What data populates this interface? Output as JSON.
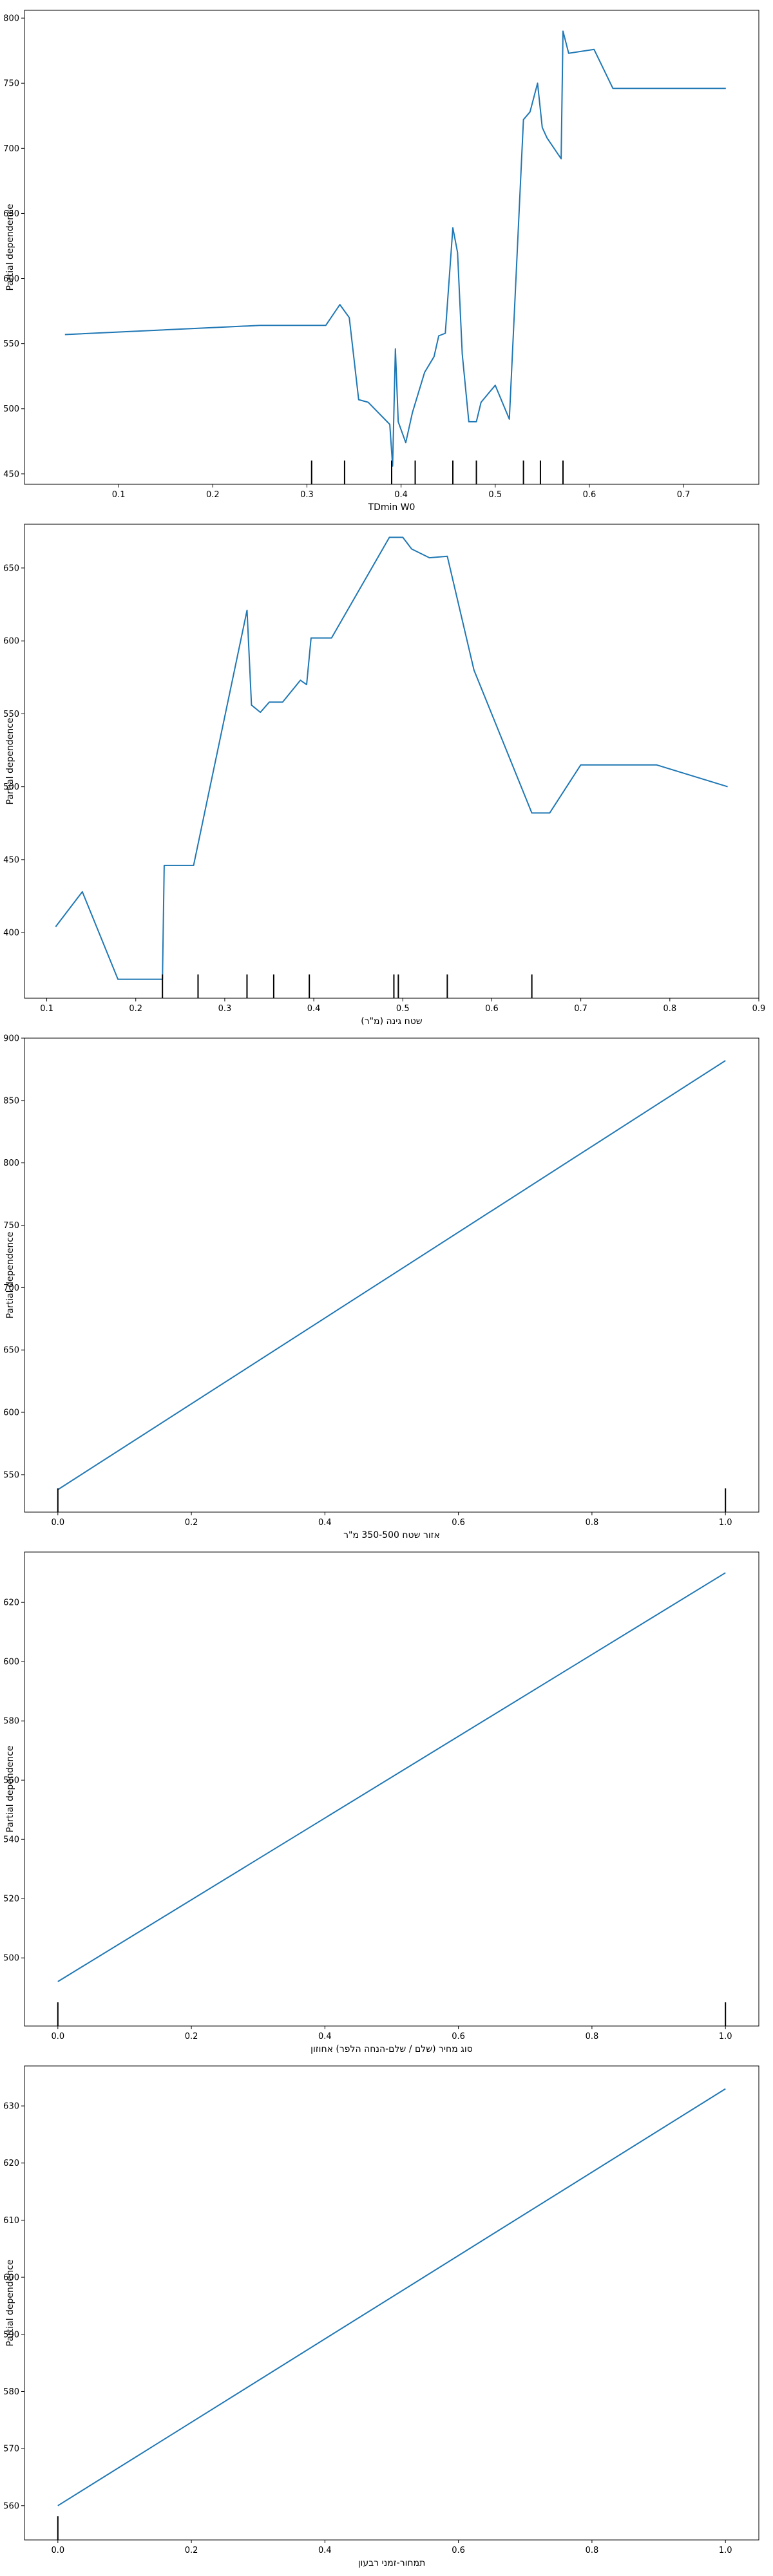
{
  "colors": {
    "line": "#1f77b4",
    "frame": "#000000",
    "rug": "#000000"
  },
  "chart_data": [
    {
      "type": "line",
      "xlabel": "TDmin W0",
      "ylabel": "Partial dependence",
      "xlim": [
        0.0,
        0.78
      ],
      "ylim": [
        442,
        806
      ],
      "xticks": [
        "0.1",
        "0.2",
        "0.3",
        "0.4",
        "0.5",
        "0.6",
        "0.7"
      ],
      "yticks": [
        "450",
        "500",
        "550",
        "600",
        "650",
        "700",
        "750",
        "800"
      ],
      "x": [
        0.043,
        0.19,
        0.25,
        0.32,
        0.335,
        0.345,
        0.355,
        0.365,
        0.388,
        0.391,
        0.394,
        0.397,
        0.405,
        0.412,
        0.425,
        0.435,
        0.44,
        0.447,
        0.455,
        0.46,
        0.465,
        0.472,
        0.48,
        0.485,
        0.5,
        0.515,
        0.53,
        0.537,
        0.545,
        0.55,
        0.555,
        0.57,
        0.572,
        0.578,
        0.605,
        0.625,
        0.745
      ],
      "y": [
        557,
        562,
        564,
        564,
        580,
        570,
        507,
        505,
        488,
        456,
        546,
        490,
        474,
        497,
        528,
        540,
        556,
        558,
        639,
        620,
        542,
        490,
        490,
        505,
        518,
        492,
        722,
        728,
        750,
        716,
        708,
        692,
        790,
        773,
        776,
        746,
        746
      ],
      "rug": [
        0.305,
        0.34,
        0.39,
        0.415,
        0.455,
        0.48,
        0.53,
        0.548,
        0.572
      ]
    },
    {
      "type": "line",
      "xlabel": "שטח גינה (מ\"ר)",
      "ylabel": "Partial dependence",
      "xlim": [
        0.075,
        0.9
      ],
      "ylim": [
        355,
        680
      ],
      "xticks": [
        "0.1",
        "0.2",
        "0.3",
        "0.4",
        "0.5",
        "0.6",
        "0.7",
        "0.8",
        "0.9"
      ],
      "yticks": [
        "400",
        "450",
        "500",
        "550",
        "600",
        "650"
      ],
      "x": [
        0.11,
        0.14,
        0.18,
        0.23,
        0.232,
        0.265,
        0.325,
        0.33,
        0.34,
        0.35,
        0.365,
        0.385,
        0.392,
        0.397,
        0.42,
        0.485,
        0.5,
        0.51,
        0.53,
        0.55,
        0.58,
        0.645,
        0.665,
        0.7,
        0.785,
        0.865
      ],
      "y": [
        404,
        428,
        368,
        368,
        446,
        446,
        621,
        556,
        551,
        558,
        558,
        573,
        570,
        602,
        602,
        671,
        671,
        663,
        657,
        658,
        580,
        482,
        482,
        515,
        515,
        500
      ],
      "rug": [
        0.23,
        0.27,
        0.325,
        0.355,
        0.395,
        0.49,
        0.495,
        0.55,
        0.645
      ]
    },
    {
      "type": "line",
      "xlabel": "אזור שטח 350-500 מ\"ר",
      "ylabel": "Partial dependence",
      "xlim": [
        -0.05,
        1.05
      ],
      "ylim": [
        520,
        900
      ],
      "xticks": [
        "0.0",
        "0.2",
        "0.4",
        "0.6",
        "0.8",
        "1.0"
      ],
      "yticks": [
        "550",
        "600",
        "650",
        "700",
        "750",
        "800",
        "850",
        "900"
      ],
      "x": [
        0.0,
        1.0
      ],
      "y": [
        538,
        882
      ],
      "rug": [
        0.0,
        1.0
      ]
    },
    {
      "type": "line",
      "xlabel": "סוג מחיר (שלם / שלם-הנחה הלפר) אחוזון",
      "ylabel": "Partial dependence",
      "xlim": [
        -0.05,
        1.05
      ],
      "ylim": [
        477,
        637
      ],
      "xticks": [
        "0.0",
        "0.2",
        "0.4",
        "0.6",
        "0.8",
        "1.0"
      ],
      "yticks": [
        "500",
        "520",
        "540",
        "560",
        "580",
        "600",
        "620"
      ],
      "x": [
        0.0,
        1.0
      ],
      "y": [
        492,
        630
      ],
      "rug": [
        0.0,
        1.0
      ]
    },
    {
      "type": "line",
      "xlabel": "תמחור-זמני רבעון",
      "ylabel": "Partial dependence",
      "xlim": [
        -0.05,
        1.05
      ],
      "ylim": [
        554,
        637
      ],
      "xticks": [
        "0.0",
        "0.2",
        "0.4",
        "0.6",
        "0.8",
        "1.0"
      ],
      "yticks": [
        "560",
        "570",
        "580",
        "590",
        "600",
        "610",
        "620",
        "630"
      ],
      "x": [
        0.0,
        1.0
      ],
      "y": [
        560,
        633
      ],
      "rug": [
        0.0
      ]
    }
  ]
}
